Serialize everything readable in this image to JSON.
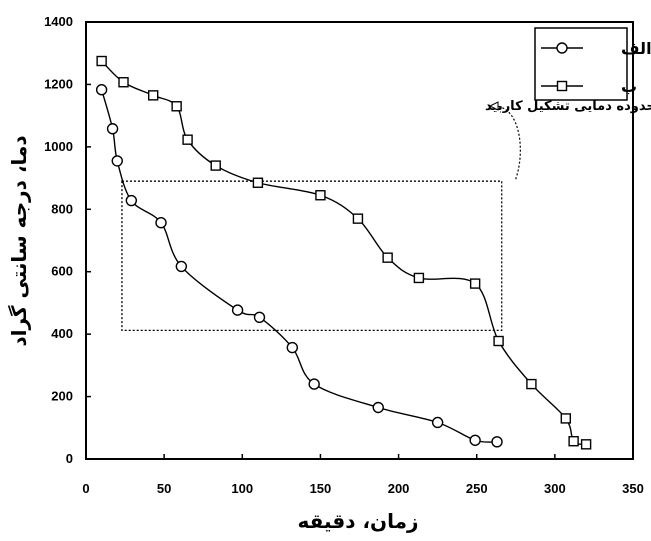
{
  "chart_data": {
    "type": "line",
    "xlabel": "زمان، دقیقه",
    "ylabel": "دما، درجه سانتی گراد",
    "xlim": [
      0,
      350
    ],
    "ylim": [
      0,
      1400
    ],
    "xticks": [
      0,
      50,
      100,
      150,
      200,
      250,
      300,
      350
    ],
    "yticks": [
      0,
      200,
      400,
      600,
      800,
      1000,
      1200,
      1400
    ],
    "grid": false,
    "legend_position": "top-right",
    "series": [
      {
        "name": "الف",
        "marker": "circle",
        "color": "#000000",
        "x": [
          10,
          17,
          20,
          29,
          48,
          61,
          97,
          111,
          132,
          146,
          187,
          225,
          249,
          263
        ],
        "y": [
          1183,
          1058,
          955,
          828,
          757,
          617,
          477,
          454,
          357,
          240,
          165,
          117,
          60,
          55
        ]
      },
      {
        "name": "ب",
        "marker": "square",
        "color": "#000000",
        "x": [
          10,
          24,
          43,
          58,
          65,
          83,
          110,
          150,
          174,
          193,
          213,
          249,
          264,
          285,
          307,
          312,
          320
        ],
        "y": [
          1275,
          1207,
          1165,
          1130,
          1023,
          940,
          885,
          845,
          770,
          645,
          580,
          562,
          378,
          240,
          130,
          57,
          47
        ]
      }
    ],
    "annotation": {
      "text": "محدوده دمایی تشکیل کاربید",
      "x_range": [
        23,
        266
      ],
      "y_range": [
        412,
        890
      ]
    }
  }
}
